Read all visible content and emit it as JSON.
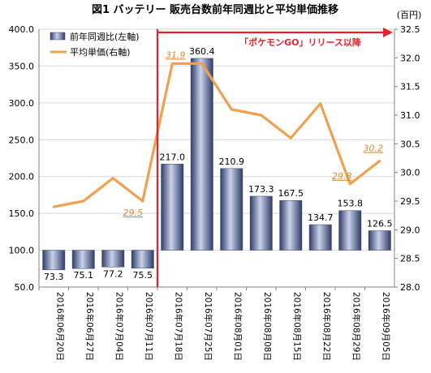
{
  "chart_data": {
    "type": "bar",
    "title": "図1 バッテリー 販売台数前年同週比と平均単価推移",
    "categories": [
      "2016年06月20日",
      "2016年06月27日",
      "2016年07月04日",
      "2016年07月11日",
      "2016年07月18日",
      "2016年07月25日",
      "2016年08月01日",
      "2016年08月08日",
      "2016年08月15日",
      "2016年08月22日",
      "2016年08月29日",
      "2016年09月05日"
    ],
    "series": [
      {
        "name": "前年同週比(左軸)",
        "type": "bar",
        "axis": "left",
        "color": "#4a5a88",
        "values": [
          73.3,
          75.1,
          77.2,
          75.5,
          217.0,
          360.4,
          210.9,
          173.3,
          167.5,
          134.7,
          153.8,
          126.5
        ]
      },
      {
        "name": "平均単価(右軸)",
        "type": "line",
        "axis": "right",
        "color": "#f0a050",
        "values": [
          29.4,
          29.5,
          29.9,
          29.5,
          31.9,
          31.9,
          31.1,
          31.0,
          30.6,
          31.2,
          29.8,
          30.2
        ]
      }
    ],
    "bar_labels": [
      "73.3",
      "75.1",
      "77.2",
      "75.5",
      "217.0",
      "360.4",
      "210.9",
      "173.3",
      "167.5",
      "134.7",
      "153.8",
      "126.5"
    ],
    "line_callouts": [
      {
        "index": 3,
        "text": "29.5"
      },
      {
        "index": 4,
        "text": "31.9"
      },
      {
        "index": 10,
        "text": "29.8"
      },
      {
        "index": 11,
        "text": "30.2"
      }
    ],
    "ylim_left": [
      50,
      400
    ],
    "yticks_left": [
      "50.0",
      "100.0",
      "150.0",
      "200.0",
      "250.0",
      "300.0",
      "350.0",
      "400.0"
    ],
    "bar_baseline": 100,
    "ylim_right": [
      28.0,
      32.5
    ],
    "yticks_right": [
      "28.0",
      "28.5",
      "29.0",
      "29.5",
      "30.0",
      "30.5",
      "31.0",
      "31.5",
      "32.0",
      "32.5"
    ],
    "right_unit": "(百円)",
    "annotation": {
      "text": "「ポケモンGO」リリース以降",
      "start_index": 4,
      "color": "#e8202a"
    },
    "grid": true,
    "legend_position": "top-left"
  }
}
